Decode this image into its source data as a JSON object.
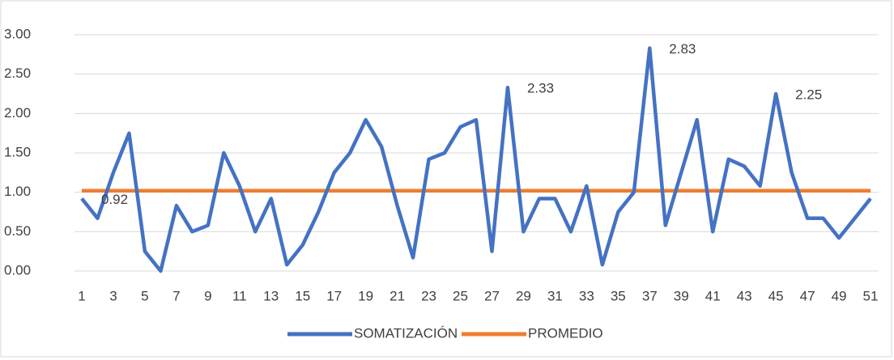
{
  "chart_data": {
    "type": "line",
    "categories": [
      1,
      null,
      3,
      null,
      5,
      null,
      7,
      null,
      9,
      null,
      11,
      null,
      13,
      null,
      15,
      null,
      17,
      null,
      19,
      null,
      21,
      null,
      23,
      null,
      25,
      null,
      27,
      null,
      29,
      null,
      31,
      null,
      33,
      null,
      35,
      null,
      37,
      null,
      39,
      null,
      41,
      null,
      43,
      null,
      45,
      null,
      47,
      null,
      49,
      null,
      51
    ],
    "series": [
      {
        "name": "SOMATIZACIÓN",
        "color": "#4472c4",
        "values": [
          0.92,
          0.67,
          1.25,
          1.75,
          0.25,
          0.0,
          0.83,
          0.5,
          0.58,
          1.5,
          1.08,
          0.5,
          0.92,
          0.08,
          0.33,
          0.75,
          1.25,
          1.5,
          1.92,
          1.58,
          0.83,
          0.17,
          1.42,
          1.5,
          1.83,
          1.92,
          0.25,
          2.33,
          0.5,
          0.92,
          0.92,
          0.5,
          1.08,
          0.08,
          0.75,
          1.0,
          2.83,
          0.58,
          1.25,
          1.92,
          0.5,
          1.42,
          1.33,
          1.08,
          2.25,
          1.25,
          0.67,
          0.67,
          0.42,
          0.67,
          0.92
        ],
        "value_labels": [
          "0.92",
          null,
          null,
          null,
          null,
          null,
          null,
          null,
          null,
          null,
          null,
          null,
          null,
          null,
          null,
          null,
          null,
          null,
          null,
          null,
          null,
          null,
          null,
          null,
          null,
          null,
          null,
          "2.33",
          null,
          null,
          null,
          null,
          null,
          null,
          null,
          null,
          "2.83",
          null,
          null,
          null,
          null,
          null,
          null,
          null,
          "2.25",
          null,
          null,
          null,
          null,
          null,
          null
        ]
      },
      {
        "name": "PROMEDIO",
        "color": "#ed7d31",
        "values": [
          1.02,
          1.02,
          1.02,
          1.02,
          1.02,
          1.02,
          1.02,
          1.02,
          1.02,
          1.02,
          1.02,
          1.02,
          1.02,
          1.02,
          1.02,
          1.02,
          1.02,
          1.02,
          1.02,
          1.02,
          1.02,
          1.02,
          1.02,
          1.02,
          1.02,
          1.02,
          1.02,
          1.02,
          1.02,
          1.02,
          1.02,
          1.02,
          1.02,
          1.02,
          1.02,
          1.02,
          1.02,
          1.02,
          1.02,
          1.02,
          1.02,
          1.02,
          1.02,
          1.02,
          1.02,
          1.02,
          1.02,
          1.02,
          1.02,
          1.02,
          1.02
        ]
      }
    ],
    "ylim": [
      0,
      3
    ],
    "yticks": [
      {
        "value": 0,
        "label": "0.00"
      },
      {
        "value": 0.5,
        "label": "0.50"
      },
      {
        "value": 1,
        "label": "1.00"
      },
      {
        "value": 1.5,
        "label": "1.50"
      },
      {
        "value": 2,
        "label": "2.00"
      },
      {
        "value": 2.5,
        "label": "2.50"
      },
      {
        "value": 3,
        "label": "3.00"
      }
    ],
    "grid": true,
    "legend": "bottom"
  }
}
